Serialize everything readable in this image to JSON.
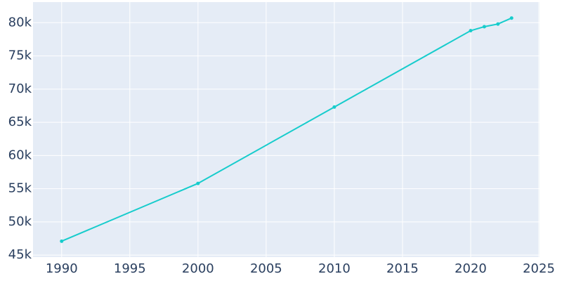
{
  "chart_data": {
    "type": "line",
    "x": [
      1990,
      2000,
      2010,
      2020,
      2021,
      2022,
      2023
    ],
    "series": [
      {
        "color": "#17cccc",
        "values": [
          47100,
          55800,
          67300,
          78800,
          79400,
          79800,
          80700
        ]
      }
    ],
    "xlim": [
      1987.9,
      2025.05
    ],
    "xticks": [
      1990,
      1995,
      2000,
      2005,
      2010,
      2015,
      2020,
      2025
    ],
    "ylim": [
      44700,
      83100
    ],
    "yticks": [
      {
        "value": 45000,
        "label": "45k"
      },
      {
        "value": 50000,
        "label": "50k"
      },
      {
        "value": 55000,
        "label": "55k"
      },
      {
        "value": 60000,
        "label": "60k"
      },
      {
        "value": 65000,
        "label": "65k"
      },
      {
        "value": 70000,
        "label": "70k"
      },
      {
        "value": 75000,
        "label": "75k"
      },
      {
        "value": 80000,
        "label": "80k"
      }
    ],
    "grid": true,
    "background": "#e5ecf6"
  }
}
